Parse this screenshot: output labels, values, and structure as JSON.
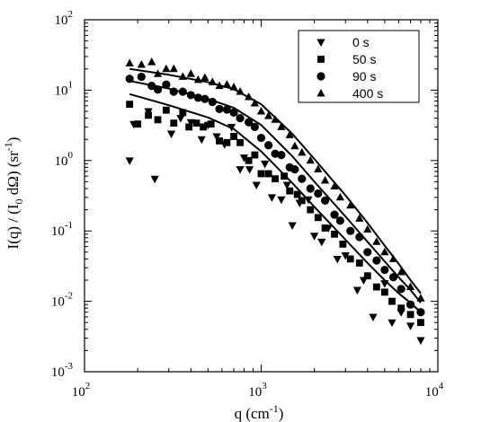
{
  "chart_data": {
    "type": "scatter",
    "xscale": "log",
    "yscale": "log",
    "xlim": [
      100,
      10000
    ],
    "ylim": [
      0.001,
      100
    ],
    "xlabel": "q (cm",
    "xlabel_sup": "-1",
    "xlabel_end": ")",
    "ylabel": "I(q) / (I",
    "ylabel_sub": "0",
    "ylabel_mid": " dΩ)   (sr",
    "ylabel_sup": "-1",
    "ylabel_end": ")",
    "x_ticks": [
      {
        "value": 100,
        "base": "10",
        "exp": "2"
      },
      {
        "value": 1000,
        "base": "10",
        "exp": "3"
      },
      {
        "value": 10000,
        "base": "10",
        "exp": "4"
      }
    ],
    "y_ticks": [
      {
        "value": 0.001,
        "base": "10",
        "exp": "-3"
      },
      {
        "value": 0.01,
        "base": "10",
        "exp": "-2"
      },
      {
        "value": 0.1,
        "base": "10",
        "exp": "-1"
      },
      {
        "value": 1,
        "base": "10",
        "exp": "0"
      },
      {
        "value": 10,
        "base": "10",
        "exp": "1"
      },
      {
        "value": 100,
        "base": "10",
        "exp": "2"
      }
    ],
    "legend_position": "top-right",
    "grid": false,
    "series": [
      {
        "name": "0 s",
        "marker": "triangle-down",
        "points": [
          [
            180,
            1.0
          ],
          [
            190,
            3.3
          ],
          [
            230,
            5.0
          ],
          [
            250,
            0.55
          ],
          [
            310,
            2.4
          ],
          [
            350,
            4.0
          ],
          [
            400,
            3.5
          ],
          [
            460,
            2.0
          ],
          [
            500,
            3.2
          ],
          [
            560,
            2.2
          ],
          [
            620,
            1.7
          ],
          [
            680,
            3.0
          ],
          [
            760,
            0.75
          ],
          [
            800,
            1.1
          ],
          [
            860,
            0.75
          ],
          [
            940,
            0.45
          ],
          [
            1050,
            0.9
          ],
          [
            1150,
            0.3
          ],
          [
            1300,
            0.28
          ],
          [
            1400,
            0.45
          ],
          [
            1500,
            0.12
          ],
          [
            1650,
            0.25
          ],
          [
            1850,
            0.28
          ],
          [
            2000,
            0.085
          ],
          [
            2200,
            0.07
          ],
          [
            2400,
            0.11
          ],
          [
            2700,
            0.04
          ],
          [
            3000,
            0.045
          ],
          [
            3500,
            0.0145
          ],
          [
            3800,
            0.02
          ],
          [
            4300,
            0.006
          ],
          [
            5000,
            0.018
          ],
          [
            5500,
            0.005
          ],
          [
            6200,
            0.007
          ],
          [
            7000,
            0.0045
          ],
          [
            8000,
            0.0028
          ]
        ]
      },
      {
        "name": "50 s",
        "marker": "square",
        "points": [
          [
            180,
            6.3
          ],
          [
            200,
            3.3
          ],
          [
            230,
            4.4
          ],
          [
            260,
            3.8
          ],
          [
            290,
            5.2
          ],
          [
            320,
            3.4
          ],
          [
            360,
            4.8
          ],
          [
            390,
            3.0
          ],
          [
            430,
            3.4
          ],
          [
            470,
            3.0
          ],
          [
            520,
            3.3
          ],
          [
            580,
            1.9
          ],
          [
            640,
            1.8
          ],
          [
            700,
            2.2
          ],
          [
            760,
            1.8
          ],
          [
            850,
            1.0
          ],
          [
            920,
            1.2
          ],
          [
            1000,
            0.65
          ],
          [
            1100,
            0.65
          ],
          [
            1200,
            0.55
          ],
          [
            1350,
            0.6
          ],
          [
            1450,
            0.37
          ],
          [
            1600,
            0.33
          ],
          [
            1700,
            0.27
          ],
          [
            1900,
            0.2
          ],
          [
            2100,
            0.155
          ],
          [
            2300,
            0.11
          ],
          [
            2600,
            0.09
          ],
          [
            2900,
            0.065
          ],
          [
            3200,
            0.04
          ],
          [
            3600,
            0.035
          ],
          [
            4000,
            0.023
          ],
          [
            4500,
            0.016
          ],
          [
            5000,
            0.0135
          ],
          [
            5500,
            0.01
          ],
          [
            6200,
            0.008
          ],
          [
            7000,
            0.0065
          ],
          [
            8000,
            0.005
          ]
        ]
      },
      {
        "name": "90 s",
        "marker": "circle",
        "points": [
          [
            180,
            14.5
          ],
          [
            210,
            15.5
          ],
          [
            240,
            11.5
          ],
          [
            260,
            10.2
          ],
          [
            290,
            12.0
          ],
          [
            320,
            9.5
          ],
          [
            360,
            9.5
          ],
          [
            400,
            8.5
          ],
          [
            440,
            7.8
          ],
          [
            480,
            7.5
          ],
          [
            530,
            6.8
          ],
          [
            580,
            5.4
          ],
          [
            640,
            5.3
          ],
          [
            700,
            4.8
          ],
          [
            760,
            4.0
          ],
          [
            850,
            3.5
          ],
          [
            920,
            3.0
          ],
          [
            1000,
            2.1
          ],
          [
            1100,
            1.65
          ],
          [
            1200,
            1.25
          ],
          [
            1300,
            1.2
          ],
          [
            1450,
            0.8
          ],
          [
            1550,
            0.75
          ],
          [
            1700,
            0.55
          ],
          [
            1900,
            0.4
          ],
          [
            2100,
            0.34
          ],
          [
            2300,
            0.27
          ],
          [
            2600,
            0.17
          ],
          [
            2800,
            0.14
          ],
          [
            3200,
            0.1
          ],
          [
            3600,
            0.082
          ],
          [
            4000,
            0.05
          ],
          [
            4500,
            0.038
          ],
          [
            5000,
            0.028
          ],
          [
            5600,
            0.022
          ],
          [
            6200,
            0.015
          ],
          [
            7000,
            0.009
          ],
          [
            8000,
            0.007
          ]
        ]
      },
      {
        "name": "400 s",
        "marker": "triangle-up",
        "points": [
          [
            180,
            24
          ],
          [
            210,
            23
          ],
          [
            240,
            25
          ],
          [
            260,
            17
          ],
          [
            290,
            20
          ],
          [
            320,
            20
          ],
          [
            360,
            15.5
          ],
          [
            400,
            17
          ],
          [
            440,
            14
          ],
          [
            480,
            15
          ],
          [
            530,
            13
          ],
          [
            580,
            11.5
          ],
          [
            640,
            12
          ],
          [
            700,
            11
          ],
          [
            760,
            9.5
          ],
          [
            850,
            8
          ],
          [
            920,
            6.5
          ],
          [
            1000,
            5
          ],
          [
            1100,
            4.3
          ],
          [
            1200,
            3.8
          ],
          [
            1300,
            3.0
          ],
          [
            1450,
            2.3
          ],
          [
            1550,
            1.6
          ],
          [
            1700,
            1.3
          ],
          [
            1900,
            1.0
          ],
          [
            2100,
            0.75
          ],
          [
            2300,
            0.52
          ],
          [
            2600,
            0.43
          ],
          [
            2800,
            0.3
          ],
          [
            3200,
            0.23
          ],
          [
            3600,
            0.15
          ],
          [
            4000,
            0.105
          ],
          [
            4500,
            0.07
          ],
          [
            5000,
            0.05
          ],
          [
            5600,
            0.04
          ],
          [
            6200,
            0.026
          ],
          [
            7000,
            0.016
          ],
          [
            8000,
            0.011
          ]
        ]
      }
    ],
    "fit_curves": [
      {
        "points": [
          [
            180,
            8.8
          ],
          [
            300,
            6.1
          ],
          [
            500,
            4.1
          ],
          [
            700,
            2.8
          ],
          [
            1000,
            1.35
          ],
          [
            1500,
            0.48
          ],
          [
            2000,
            0.22
          ],
          [
            3000,
            0.075
          ],
          [
            4000,
            0.035
          ],
          [
            5000,
            0.02
          ],
          [
            6000,
            0.013
          ],
          [
            7000,
            0.0095
          ],
          [
            8000,
            0.007
          ]
        ]
      },
      {
        "points": [
          [
            180,
            13.5
          ],
          [
            300,
            10.5
          ],
          [
            500,
            7.5
          ],
          [
            700,
            5.6
          ],
          [
            1000,
            3.2
          ],
          [
            1500,
            1.15
          ],
          [
            2000,
            0.5
          ],
          [
            3000,
            0.16
          ],
          [
            4000,
            0.07
          ],
          [
            5000,
            0.037
          ],
          [
            6000,
            0.022
          ],
          [
            7000,
            0.0145
          ],
          [
            8000,
            0.0095
          ]
        ]
      },
      {
        "points": [
          [
            180,
            20
          ],
          [
            300,
            16.5
          ],
          [
            500,
            13
          ],
          [
            700,
            10.3
          ],
          [
            1000,
            6.3
          ],
          [
            1500,
            2.4
          ],
          [
            2000,
            1.05
          ],
          [
            3000,
            0.32
          ],
          [
            4000,
            0.13
          ],
          [
            5000,
            0.062
          ],
          [
            6000,
            0.034
          ],
          [
            7000,
            0.02
          ],
          [
            8000,
            0.013
          ]
        ]
      }
    ]
  }
}
